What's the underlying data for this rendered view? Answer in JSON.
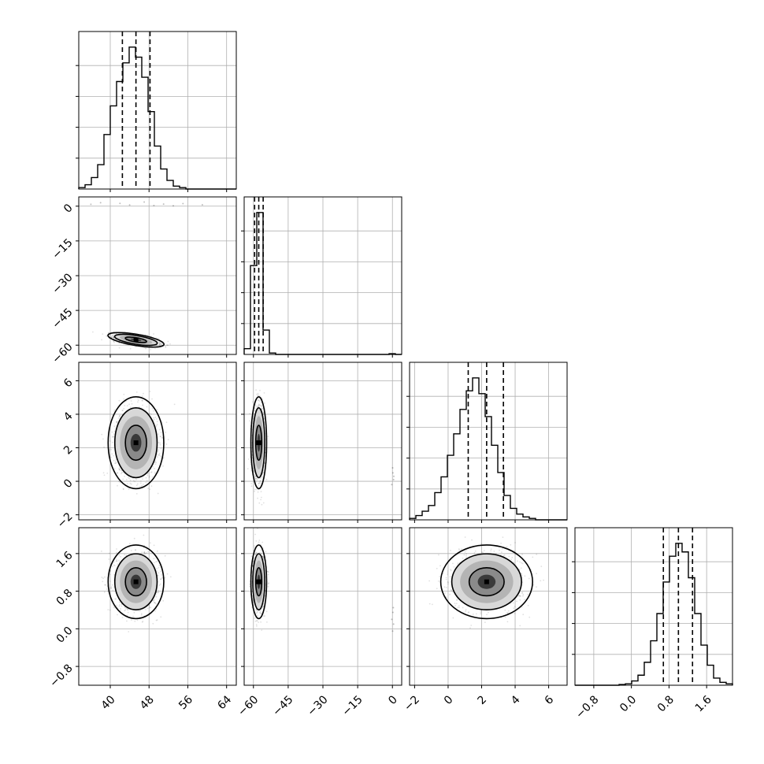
{
  "chart_data": {
    "type": "corner",
    "title": "",
    "grid": true,
    "parameters": [
      {
        "index": 0,
        "range": [
          33.5,
          66
        ],
        "ticks": [
          40,
          48,
          56,
          64
        ],
        "tick_labels": [
          "40",
          "48",
          "56",
          "64"
        ],
        "quantiles": [
          42.5,
          45.3,
          48.2
        ],
        "hist": {
          "edges": [
            33.5,
            34.8,
            36.1,
            37.4,
            38.7,
            40.0,
            41.3,
            42.6,
            43.9,
            45.2,
            46.5,
            47.8,
            49.1,
            50.4,
            51.7,
            53.0,
            54.3,
            55.6,
            56.9,
            58.2,
            59.5,
            60.8,
            62.1,
            63.4,
            64.7,
            66.0
          ],
          "counts": [
            0.01,
            0.03,
            0.08,
            0.17,
            0.38,
            0.58,
            0.75,
            0.88,
            0.99,
            0.92,
            0.78,
            0.54,
            0.3,
            0.14,
            0.06,
            0.02,
            0.01,
            0,
            0,
            0,
            0,
            0,
            0,
            0,
            0
          ]
        }
      },
      {
        "index": 1,
        "range": [
          -64,
          4
        ],
        "ticks": [
          -60,
          -45,
          -30,
          -15,
          0
        ],
        "tick_labels": [
          "−60",
          "−45",
          "−30",
          "−15",
          "0"
        ],
        "quantiles": [
          -59.5,
          -57.7,
          -55.8
        ],
        "hist": {
          "edges": [
            -64.0,
            -61.28,
            -58.56,
            -55.84,
            -53.12,
            -50.4,
            -47.68,
            -44.96,
            -42.24,
            -39.52,
            -36.8,
            -34.08,
            -31.36,
            -28.64,
            -25.92,
            -23.2,
            -20.48,
            -17.76,
            -15.04,
            -12.32,
            -9.6,
            -6.88,
            -4.16,
            -1.44,
            1.28,
            4.0
          ],
          "counts": [
            0.04,
            0.62,
            0.99,
            0.17,
            0.01,
            0,
            0,
            0,
            0,
            0,
            0,
            0,
            0,
            0,
            0,
            0,
            0,
            0,
            0,
            0,
            0,
            0,
            0,
            0.005,
            0
          ]
        }
      },
      {
        "index": 2,
        "range": [
          -2.3,
          7.1
        ],
        "ticks": [
          -2,
          0,
          2,
          4,
          6
        ],
        "tick_labels": [
          "−2",
          "0",
          "2",
          "4",
          "6"
        ],
        "quantiles": [
          1.2,
          2.3,
          3.3
        ],
        "hist": {
          "edges": [
            -2.3,
            -1.924,
            -1.548,
            -1.172,
            -0.796,
            -0.42,
            -0.044,
            0.332,
            0.708,
            1.084,
            1.46,
            1.836,
            2.212,
            2.588,
            2.964,
            3.34,
            3.716,
            4.092,
            4.468,
            4.844,
            5.22,
            5.596,
            5.972,
            6.348,
            6.724,
            7.1
          ],
          "counts": [
            0.01,
            0.03,
            0.06,
            0.1,
            0.19,
            0.3,
            0.45,
            0.6,
            0.77,
            0.9,
            0.99,
            0.88,
            0.72,
            0.52,
            0.33,
            0.17,
            0.08,
            0.04,
            0.02,
            0.01,
            0,
            0,
            0,
            0,
            0
          ]
        }
      },
      {
        "index": 3,
        "range": [
          -1.2,
          2.15
        ],
        "ticks": [
          -0.8,
          0.0,
          0.8,
          1.6
        ],
        "tick_labels": [
          "−0.8",
          "0.0",
          "0.8",
          "1.6"
        ],
        "quantiles": [
          0.68,
          1.0,
          1.3
        ],
        "hist": {
          "edges": [
            -1.2,
            -1.066,
            -0.932,
            -0.798,
            -0.664,
            -0.53,
            -0.396,
            -0.262,
            -0.128,
            0.006,
            0.14,
            0.274,
            0.408,
            0.542,
            0.676,
            0.81,
            0.944,
            1.078,
            1.212,
            1.346,
            1.48,
            1.614,
            1.748,
            1.882,
            2.016,
            2.15
          ],
          "counts": [
            0,
            0,
            0,
            0,
            0,
            0,
            0,
            0.005,
            0.01,
            0.03,
            0.07,
            0.16,
            0.31,
            0.5,
            0.72,
            0.9,
            0.99,
            0.93,
            0.75,
            0.5,
            0.28,
            0.14,
            0.05,
            0.02,
            0.01
          ]
        }
      }
    ],
    "pairs": [
      {
        "row": 1,
        "col": 0,
        "center": [
          45.3,
          -57.7
        ],
        "sigma": [
          2.2,
          1.3
        ],
        "rho": -0.55,
        "outliers": [
          [
            36,
            0.8
          ],
          [
            42,
            1.2
          ],
          [
            44,
            0.5
          ],
          [
            47,
            1.8
          ],
          [
            51,
            0.9
          ],
          [
            53,
            0.2
          ],
          [
            55,
            1.1
          ],
          [
            59,
            0.6
          ],
          [
            38,
            1.5
          ],
          [
            49,
            0.3
          ]
        ]
      },
      {
        "row": 2,
        "col": 0,
        "center": [
          45.3,
          2.3
        ],
        "sigma": [
          2.2,
          1.05
        ],
        "rho": 0,
        "outliers": []
      },
      {
        "row": 2,
        "col": 1,
        "center": [
          -57.7,
          2.3
        ],
        "sigma": [
          1.3,
          1.05
        ],
        "rho": 0,
        "outliers": [
          [
            0.2,
            0.5
          ],
          [
            0.5,
            0.1
          ],
          [
            -0.3,
            -0.2
          ],
          [
            0.1,
            0.8
          ],
          [
            0.6,
            0.3
          ]
        ]
      },
      {
        "row": 3,
        "col": 0,
        "center": [
          45.3,
          1.0
        ],
        "sigma": [
          2.2,
          0.3
        ],
        "rho": 0,
        "outliers": []
      },
      {
        "row": 3,
        "col": 1,
        "center": [
          -57.7,
          1.0
        ],
        "sigma": [
          1.3,
          0.3
        ],
        "rho": 0,
        "outliers": [
          [
            0.2,
            0.35
          ],
          [
            0.5,
            0.1
          ],
          [
            -0.3,
            0.2
          ],
          [
            0.1,
            -0.05
          ],
          [
            0.4,
            0.45
          ]
        ]
      },
      {
        "row": 3,
        "col": 2,
        "center": [
          2.3,
          1.0
        ],
        "sigma": [
          1.05,
          0.3
        ],
        "rho": 0,
        "outliers": []
      }
    ]
  }
}
